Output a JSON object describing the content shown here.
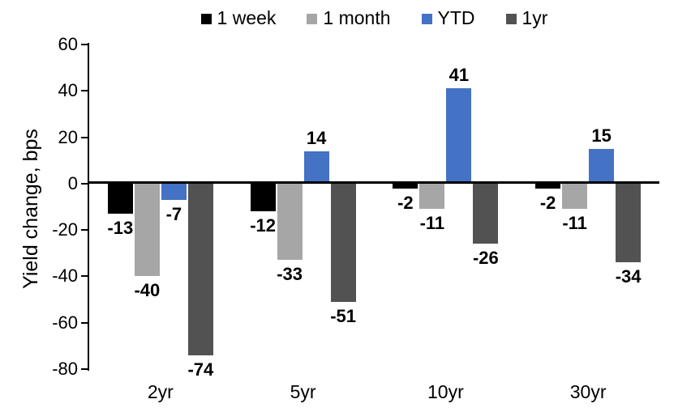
{
  "chart_data": {
    "type": "bar",
    "title": "",
    "xlabel": "",
    "ylabel": "Yield change, bps",
    "categories": [
      "2yr",
      "5yr",
      "10yr",
      "30yr"
    ],
    "series": [
      {
        "name": "1 week",
        "color": "#000000",
        "values": [
          -13,
          -12,
          -2,
          -2
        ]
      },
      {
        "name": "1 month",
        "color": "#A6A6A6",
        "values": [
          -40,
          -33,
          -11,
          -11
        ]
      },
      {
        "name": "YTD",
        "color": "#4472C4",
        "values": [
          -7,
          14,
          41,
          15
        ]
      },
      {
        "name": "1yr",
        "color": "#525252",
        "values": [
          -74,
          -51,
          -26,
          -34
        ]
      }
    ],
    "ylim": [
      -80,
      60
    ],
    "yticks": [
      60,
      40,
      20,
      0,
      -20,
      -40,
      -60,
      -80
    ],
    "grid": false,
    "legend_position": "top",
    "data_labels": true,
    "axis_color": "#000000",
    "background_color": "#FFFFFF"
  }
}
